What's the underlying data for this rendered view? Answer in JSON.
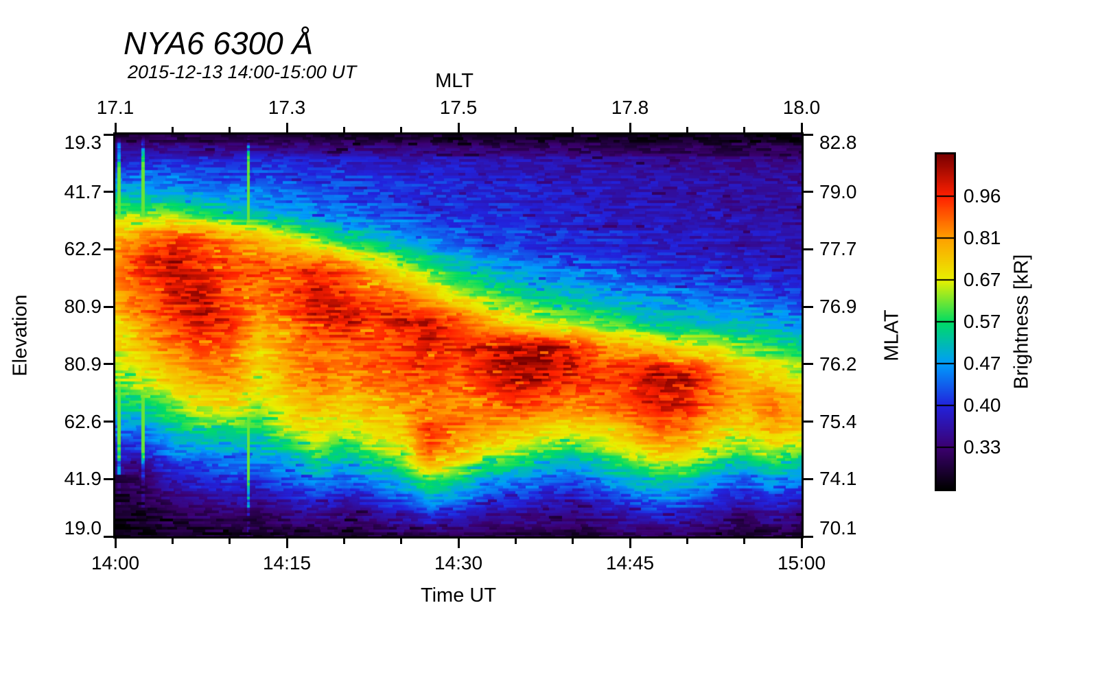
{
  "title": "NYA6 6300 Å",
  "subtitle": "2015-12-13 14:00-15:00 UT",
  "axes": {
    "top": {
      "label": "MLT",
      "ticks": [
        "17.1",
        "17.3",
        "17.5",
        "17.8",
        "18.0"
      ]
    },
    "bottom": {
      "label": "Time UT",
      "ticks": [
        "14:00",
        "14:15",
        "14:30",
        "14:45",
        "15:00"
      ]
    },
    "left": {
      "label": "Elevation",
      "ticks": [
        "19.3",
        "41.7",
        "62.2",
        "80.9",
        "80.9",
        "62.6",
        "41.9",
        "19.0"
      ]
    },
    "right": {
      "label": "MLAT",
      "ticks": [
        "82.8",
        "79.0",
        "77.7",
        "76.9",
        "76.2",
        "75.4",
        "74.1",
        "70.1"
      ]
    }
  },
  "colorbar": {
    "label": "Brightness [kR]",
    "ticks": [
      "0.96",
      "0.81",
      "0.67",
      "0.57",
      "0.47",
      "0.40",
      "0.33"
    ]
  },
  "chart_data": {
    "type": "heatmap",
    "title": "NYA6 6300 Å",
    "subtitle": "2015-12-13 14:00-15:00 UT",
    "xlabel": "Time UT",
    "ylabel_left": "Elevation",
    "ylabel_right": "MLAT",
    "value_label": "Brightness [kR]",
    "x_start_ut": "14:00",
    "x_end_ut": "15:00",
    "x_step_min": 2.5,
    "x_minutes_after_1400": [
      0,
      2.5,
      5,
      7.5,
      10,
      12.5,
      15,
      17.5,
      20,
      22.5,
      25,
      27.5,
      30,
      32.5,
      35,
      37.5,
      40,
      42.5,
      45,
      47.5,
      50,
      52.5,
      55,
      57.5,
      60
    ],
    "mlt_ticks": [
      17.1,
      17.3,
      17.5,
      17.8,
      18.0
    ],
    "elevation_ticks": [
      19.3,
      41.7,
      62.2,
      80.9,
      80.9,
      62.6,
      41.9,
      19.0
    ],
    "mlat_ticks": [
      82.8,
      79.0,
      77.7,
      76.9,
      76.2,
      75.4,
      74.1,
      70.1
    ],
    "colorbar_tick_values": [
      0.96,
      0.81,
      0.67,
      0.57,
      0.47,
      0.4,
      0.33
    ],
    "value_range": [
      0.27,
      1.08
    ],
    "grid_rows_top_to_bottom": 16,
    "grid_cols": 25,
    "values_kR": [
      [
        0.29,
        0.29,
        0.3,
        0.29,
        0.29,
        0.29,
        0.29,
        0.29,
        0.29,
        0.29,
        0.28,
        0.29,
        0.28,
        0.28,
        0.28,
        0.28,
        0.28,
        0.28,
        0.28,
        0.28,
        0.28,
        0.28,
        0.28,
        0.28,
        0.28
      ],
      [
        0.4,
        0.4,
        0.41,
        0.4,
        0.4,
        0.4,
        0.4,
        0.39,
        0.39,
        0.39,
        0.38,
        0.38,
        0.38,
        0.37,
        0.37,
        0.37,
        0.36,
        0.36,
        0.36,
        0.35,
        0.35,
        0.35,
        0.35,
        0.34,
        0.34
      ],
      [
        0.47,
        0.47,
        0.46,
        0.45,
        0.44,
        0.44,
        0.43,
        0.42,
        0.42,
        0.41,
        0.41,
        0.4,
        0.4,
        0.39,
        0.39,
        0.38,
        0.38,
        0.38,
        0.37,
        0.37,
        0.37,
        0.36,
        0.36,
        0.36,
        0.36
      ],
      [
        0.64,
        0.62,
        0.62,
        0.58,
        0.54,
        0.51,
        0.48,
        0.46,
        0.45,
        0.43,
        0.42,
        0.41,
        0.41,
        0.4,
        0.4,
        0.39,
        0.39,
        0.38,
        0.38,
        0.38,
        0.37,
        0.37,
        0.37,
        0.36,
        0.36
      ],
      [
        0.8,
        0.88,
        0.97,
        0.93,
        0.86,
        0.8,
        0.73,
        0.64,
        0.58,
        0.53,
        0.49,
        0.46,
        0.44,
        0.43,
        0.42,
        0.41,
        0.4,
        0.4,
        0.39,
        0.39,
        0.38,
        0.38,
        0.37,
        0.37,
        0.37
      ],
      [
        0.86,
        0.96,
        1.02,
        0.98,
        0.93,
        0.9,
        0.91,
        0.94,
        0.88,
        0.77,
        0.66,
        0.58,
        0.53,
        0.49,
        0.47,
        0.45,
        0.44,
        0.43,
        0.42,
        0.41,
        0.41,
        0.4,
        0.39,
        0.39,
        0.38
      ],
      [
        0.8,
        0.9,
        0.99,
        1.02,
        0.91,
        0.87,
        0.92,
        1.0,
        0.97,
        0.92,
        0.86,
        0.76,
        0.66,
        0.61,
        0.56,
        0.53,
        0.51,
        0.49,
        0.47,
        0.46,
        0.45,
        0.44,
        0.43,
        0.42,
        0.41
      ],
      [
        0.73,
        0.84,
        0.94,
        1.0,
        0.96,
        0.82,
        0.86,
        0.97,
        1.02,
        0.95,
        1.0,
        1.03,
        0.91,
        0.79,
        0.71,
        0.66,
        0.63,
        0.59,
        0.56,
        0.52,
        0.51,
        0.5,
        0.5,
        0.49,
        0.48
      ],
      [
        0.68,
        0.77,
        0.85,
        0.92,
        0.89,
        0.73,
        0.81,
        0.89,
        0.86,
        0.89,
        0.92,
        0.97,
        0.95,
        1.01,
        1.05,
        1.05,
        1.0,
        0.86,
        0.81,
        0.79,
        0.7,
        0.69,
        0.63,
        0.59,
        0.56
      ],
      [
        0.61,
        0.68,
        0.75,
        0.81,
        0.83,
        0.69,
        0.79,
        0.86,
        0.83,
        0.86,
        0.89,
        0.93,
        0.89,
        0.98,
        1.03,
        1.01,
        0.96,
        0.93,
        0.96,
        1.03,
        1.01,
        0.86,
        0.76,
        0.71,
        0.66
      ],
      [
        0.54,
        0.58,
        0.63,
        0.69,
        0.73,
        0.66,
        0.73,
        0.79,
        0.73,
        0.79,
        0.83,
        0.86,
        0.83,
        0.89,
        0.93,
        0.89,
        0.86,
        0.89,
        0.93,
        1.01,
        0.98,
        0.86,
        0.79,
        0.86,
        0.81
      ],
      [
        0.46,
        0.46,
        0.53,
        0.58,
        0.58,
        0.58,
        0.66,
        0.71,
        0.66,
        0.71,
        0.76,
        0.93,
        0.89,
        0.81,
        0.79,
        0.73,
        0.71,
        0.73,
        0.79,
        0.89,
        0.86,
        0.76,
        0.71,
        0.79,
        0.73
      ],
      [
        0.38,
        0.38,
        0.44,
        0.44,
        0.46,
        0.48,
        0.48,
        0.58,
        0.53,
        0.58,
        0.63,
        0.86,
        0.76,
        0.63,
        0.61,
        0.56,
        0.53,
        0.58,
        0.63,
        0.71,
        0.69,
        0.61,
        0.56,
        0.63,
        0.58
      ],
      [
        0.31,
        0.32,
        0.37,
        0.39,
        0.41,
        0.39,
        0.43,
        0.46,
        0.43,
        0.46,
        0.49,
        0.58,
        0.53,
        0.47,
        0.45,
        0.43,
        0.41,
        0.45,
        0.49,
        0.53,
        0.51,
        0.46,
        0.43,
        0.47,
        0.44
      ],
      [
        0.29,
        0.3,
        0.32,
        0.33,
        0.34,
        0.33,
        0.35,
        0.37,
        0.35,
        0.37,
        0.39,
        0.43,
        0.41,
        0.38,
        0.37,
        0.36,
        0.35,
        0.37,
        0.39,
        0.41,
        0.4,
        0.37,
        0.35,
        0.37,
        0.35
      ],
      [
        0.28,
        0.28,
        0.29,
        0.29,
        0.3,
        0.29,
        0.3,
        0.3,
        0.3,
        0.3,
        0.31,
        0.32,
        0.31,
        0.31,
        0.31,
        0.31,
        0.3,
        0.31,
        0.32,
        0.32,
        0.32,
        0.31,
        0.3,
        0.31,
        0.3
      ]
    ],
    "colormap_stops": {
      "values": [
        0.27,
        0.33,
        0.4,
        0.47,
        0.57,
        0.67,
        0.81,
        0.96,
        1.08
      ],
      "colors": [
        "#000000",
        "#3C0070",
        "#2222DC",
        "#009CFC",
        "#00DC64",
        "#E8F000",
        "#FFA000",
        "#FF2000",
        "#7A0000"
      ]
    },
    "artifact_streaks_ut_min": [
      0.3,
      2.4,
      11.6
    ],
    "grid_lines": false,
    "legend_position": "right-colorbar"
  }
}
